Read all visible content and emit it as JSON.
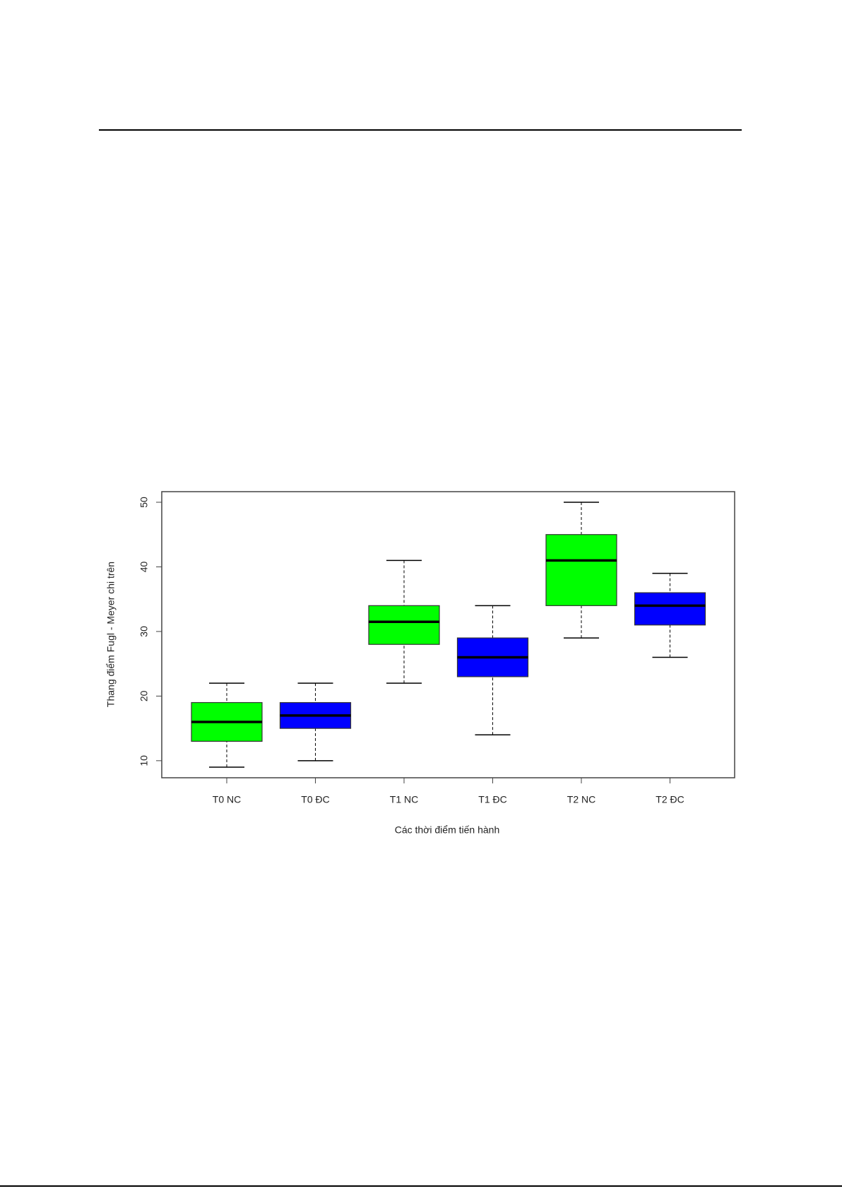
{
  "chart_data": {
    "type": "boxplot",
    "xlabel": "Các thời điểm tiến hành",
    "ylabel": "Thang điểm Fugl - Meyer chi trên",
    "categories": [
      "T0 NC",
      "T0 ĐC",
      "T1 NC",
      "T1 ĐC",
      "T2 NC",
      "T2 ĐC"
    ],
    "colors": [
      "#00ff00",
      "#0000ff",
      "#00ff00",
      "#0000ff",
      "#00ff00",
      "#0000ff"
    ],
    "boxes": [
      {
        "min": 9,
        "q1": 13,
        "median": 16,
        "q3": 19,
        "max": 22
      },
      {
        "min": 10,
        "q1": 15,
        "median": 17,
        "q3": 19,
        "max": 22
      },
      {
        "min": 22,
        "q1": 28,
        "median": 31.5,
        "q3": 34,
        "max": 41
      },
      {
        "min": 14,
        "q1": 23,
        "median": 26,
        "q3": 29,
        "max": 34
      },
      {
        "min": 29,
        "q1": 34,
        "median": 41,
        "q3": 45,
        "max": 50
      },
      {
        "min": 26,
        "q1": 31,
        "median": 34,
        "q3": 36,
        "max": 39
      }
    ],
    "ylim": [
      7.36,
      51.64
    ],
    "yticks": [
      10,
      20,
      30,
      40,
      50
    ]
  }
}
